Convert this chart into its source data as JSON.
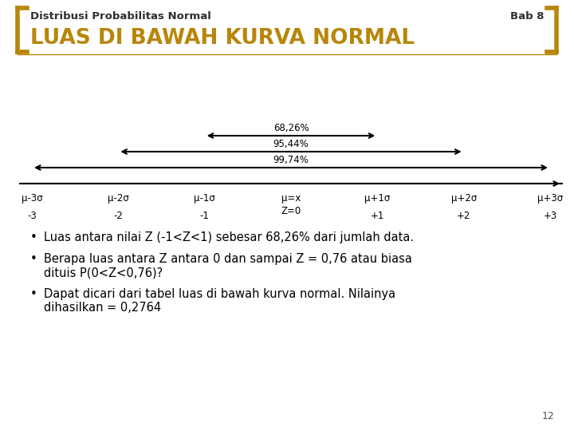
{
  "title_left": "Distribusi Probabilitas Normal",
  "title_right": "Bab 8",
  "heading": "LUAS DI BAWAH KURVA NORMAL",
  "heading_color": "#B8860B",
  "background_color": "#FFFFFF",
  "bracket_color": "#B8860B",
  "pct_68": "68,26%",
  "pct_95": "95,44%",
  "pct_99": "99,74%",
  "x_labels_top": [
    "μ-3σ",
    "μ-2σ",
    "μ-1σ",
    "μ=x\nZ=0",
    "μ+1σ",
    "μ+2σ",
    "μ+3σ"
  ],
  "x_labels_bottom": [
    "-3",
    "-2",
    "-1",
    "",
    "+1",
    "+2",
    "+3"
  ],
  "bullet1": "Luas antara nilai Z (-1<Z<1) sebesar 68,26% dari jumlah data.",
  "bullet2a": "Berapa luas antara Z antara 0 dan sampai Z = 0,76 atau biasa",
  "bullet2b": "dituis P(0<Z<0,76)?",
  "bullet3a": "Dapat dicari dari tabel luas di bawah kurva normal. Nilainya",
  "bullet3b": "dihasilkan = 0,2764",
  "page_number": "12",
  "title_fontsize": 9.5,
  "heading_fontsize": 19,
  "label_fontsize": 8.5,
  "bullet_fontsize": 10.5
}
